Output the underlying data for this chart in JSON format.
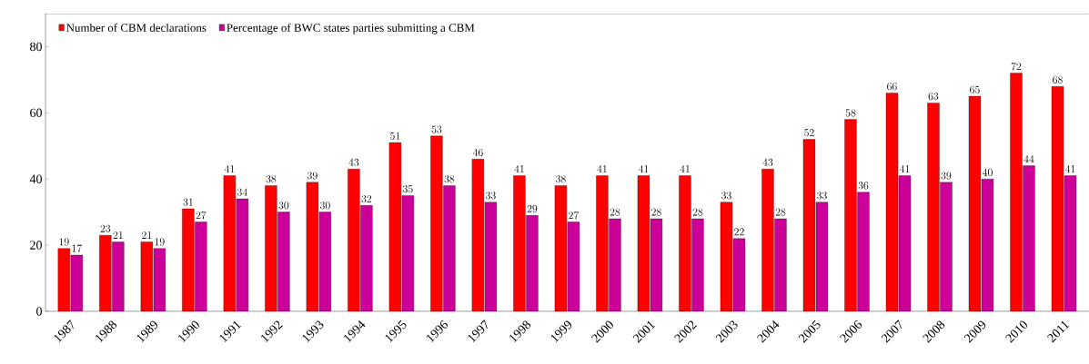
{
  "chart_data": {
    "type": "bar",
    "categories": [
      "1987",
      "1988",
      "1989",
      "1990",
      "1991",
      "1992",
      "1993",
      "1994",
      "1995",
      "1996",
      "1997",
      "1998",
      "1999",
      "2000",
      "2001",
      "2002",
      "2003",
      "2004",
      "2005",
      "2006",
      "2007",
      "2008",
      "2009",
      "2010",
      "2011"
    ],
    "series": [
      {
        "name": "Number of CBM declarations",
        "color": "#ff0000",
        "values": [
          19,
          23,
          21,
          31,
          41,
          38,
          39,
          43,
          51,
          53,
          46,
          41,
          38,
          41,
          41,
          41,
          33,
          43,
          52,
          58,
          66,
          63,
          65,
          72,
          68
        ]
      },
      {
        "name": "Percentage of BWC states parties submitting a CBM",
        "color": "#cc0099",
        "values": [
          17,
          21,
          19,
          27,
          34,
          30,
          30,
          32,
          35,
          38,
          33,
          29,
          27,
          28,
          28,
          28,
          22,
          28,
          33,
          36,
          41,
          39,
          40,
          44,
          41
        ]
      }
    ],
    "ylim": [
      0,
      90
    ],
    "yticks": [
      0,
      20,
      40,
      60,
      80
    ],
    "grid": false,
    "legend": "top left",
    "data_labels": true
  }
}
